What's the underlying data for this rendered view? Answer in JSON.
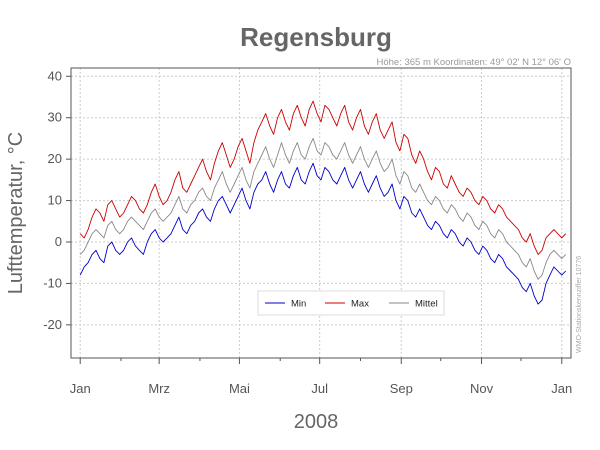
{
  "chart_data": {
    "type": "line",
    "title": "Regensburg",
    "subtitle": "Höhe: 365 m   Koordinaten: 49° 02' N  12° 06' O",
    "xlabel": "2008",
    "ylabel": "Lufttemperatur, °C",
    "side_note": "WMO-Stationskennziffer 10776",
    "ylim": [
      -28,
      42
    ],
    "yticks": [
      -20,
      -10,
      0,
      10,
      20,
      30,
      40
    ],
    "xlim": [
      -7,
      373
    ],
    "xticks": [
      {
        "label": "Jan",
        "day": 0
      },
      {
        "label": "Mrz",
        "day": 60
      },
      {
        "label": "Mai",
        "day": 121
      },
      {
        "label": "Jul",
        "day": 182
      },
      {
        "label": "Sep",
        "day": 244
      },
      {
        "label": "Nov",
        "day": 305
      },
      {
        "label": "Jan",
        "day": 366
      }
    ],
    "grid": true,
    "legend": {
      "position": "bottom-center",
      "entries": [
        "Min",
        "Max",
        "Mittel"
      ]
    },
    "series_colors": {
      "Min": "#0000cc",
      "Max": "#cc0000",
      "Mittel": "#888888"
    },
    "x_unit": "day of year 2008 (0 = 1 Jan)",
    "x_step": 3,
    "series": [
      {
        "name": "Max",
        "values": [
          2,
          1,
          3,
          6,
          8,
          7,
          5,
          9,
          10,
          8,
          6,
          7,
          9,
          11,
          10,
          8,
          7,
          9,
          12,
          14,
          11,
          9,
          10,
          12,
          15,
          17,
          13,
          12,
          14,
          16,
          18,
          20,
          17,
          15,
          19,
          22,
          24,
          21,
          18,
          20,
          23,
          25,
          22,
          19,
          24,
          27,
          29,
          31,
          28,
          26,
          30,
          32,
          29,
          27,
          31,
          33,
          30,
          28,
          32,
          34,
          31,
          29,
          33,
          32,
          30,
          28,
          31,
          33,
          29,
          27,
          30,
          32,
          28,
          26,
          29,
          31,
          27,
          25,
          27,
          29,
          24,
          22,
          26,
          25,
          21,
          19,
          22,
          20,
          17,
          15,
          18,
          17,
          14,
          13,
          16,
          14,
          12,
          11,
          13,
          12,
          10,
          9,
          11,
          10,
          8,
          7,
          9,
          8,
          6,
          5,
          4,
          3,
          1,
          0,
          2,
          -1,
          -3,
          -2,
          1,
          2,
          3,
          2,
          1,
          2
        ]
      },
      {
        "name": "Mittel",
        "values": [
          -3,
          -2,
          0,
          2,
          3,
          2,
          1,
          4,
          5,
          3,
          2,
          3,
          5,
          6,
          5,
          4,
          3,
          5,
          7,
          8,
          6,
          5,
          6,
          7,
          9,
          11,
          8,
          7,
          9,
          10,
          12,
          13,
          11,
          10,
          13,
          15,
          17,
          14,
          12,
          14,
          16,
          18,
          15,
          13,
          17,
          19,
          21,
          23,
          20,
          18,
          21,
          24,
          21,
          19,
          22,
          24,
          21,
          20,
          23,
          25,
          22,
          21,
          24,
          23,
          21,
          20,
          22,
          24,
          21,
          19,
          21,
          23,
          20,
          18,
          20,
          22,
          19,
          17,
          18,
          20,
          16,
          14,
          17,
          16,
          13,
          12,
          14,
          12,
          10,
          9,
          11,
          10,
          8,
          7,
          9,
          8,
          6,
          5,
          7,
          6,
          4,
          3,
          5,
          4,
          2,
          1,
          3,
          2,
          0,
          -1,
          -2,
          -3,
          -5,
          -6,
          -4,
          -7,
          -9,
          -8,
          -5,
          -3,
          -2,
          -3,
          -4,
          -3
        ]
      },
      {
        "name": "Min",
        "values": [
          -8,
          -6,
          -5,
          -3,
          -2,
          -4,
          -5,
          -1,
          0,
          -2,
          -3,
          -2,
          0,
          1,
          -1,
          -2,
          -3,
          0,
          2,
          3,
          1,
          0,
          1,
          2,
          4,
          6,
          3,
          2,
          4,
          5,
          7,
          8,
          6,
          5,
          8,
          10,
          11,
          9,
          7,
          9,
          11,
          13,
          10,
          8,
          12,
          14,
          15,
          17,
          14,
          12,
          15,
          17,
          14,
          13,
          16,
          18,
          15,
          14,
          17,
          19,
          16,
          15,
          18,
          17,
          15,
          14,
          16,
          18,
          15,
          13,
          15,
          17,
          14,
          12,
          14,
          16,
          13,
          11,
          12,
          14,
          10,
          8,
          11,
          10,
          7,
          6,
          8,
          6,
          4,
          3,
          5,
          4,
          2,
          1,
          3,
          2,
          0,
          -1,
          1,
          0,
          -2,
          -3,
          -1,
          -2,
          -4,
          -5,
          -3,
          -4,
          -6,
          -7,
          -8,
          -9,
          -11,
          -12,
          -10,
          -13,
          -15,
          -14,
          -10,
          -8,
          -6,
          -7,
          -8,
          -7
        ]
      }
    ]
  }
}
